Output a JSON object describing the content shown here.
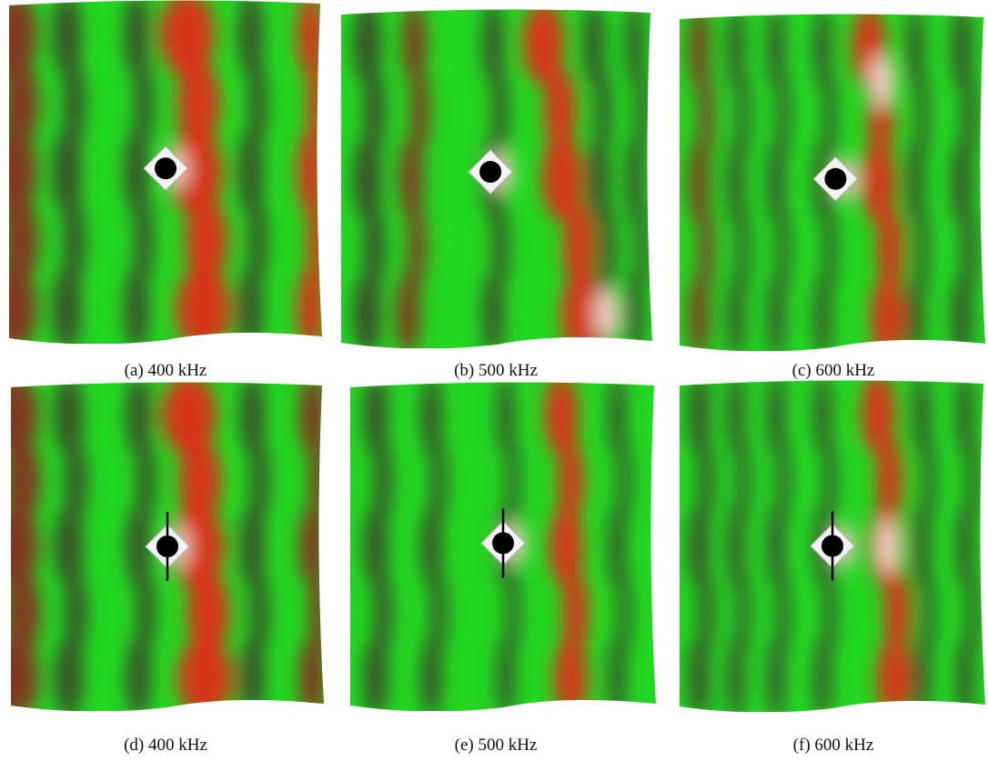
{
  "panels": [
    {
      "caption": "(a) 400 kHz"
    },
    {
      "caption": "(b) 500 kHz"
    },
    {
      "caption": "(c) 600 kHz"
    },
    {
      "caption": "(d) 400 kHz"
    },
    {
      "caption": "(e) 500 kHz"
    },
    {
      "caption": "(f) 600 kHz"
    }
  ]
}
